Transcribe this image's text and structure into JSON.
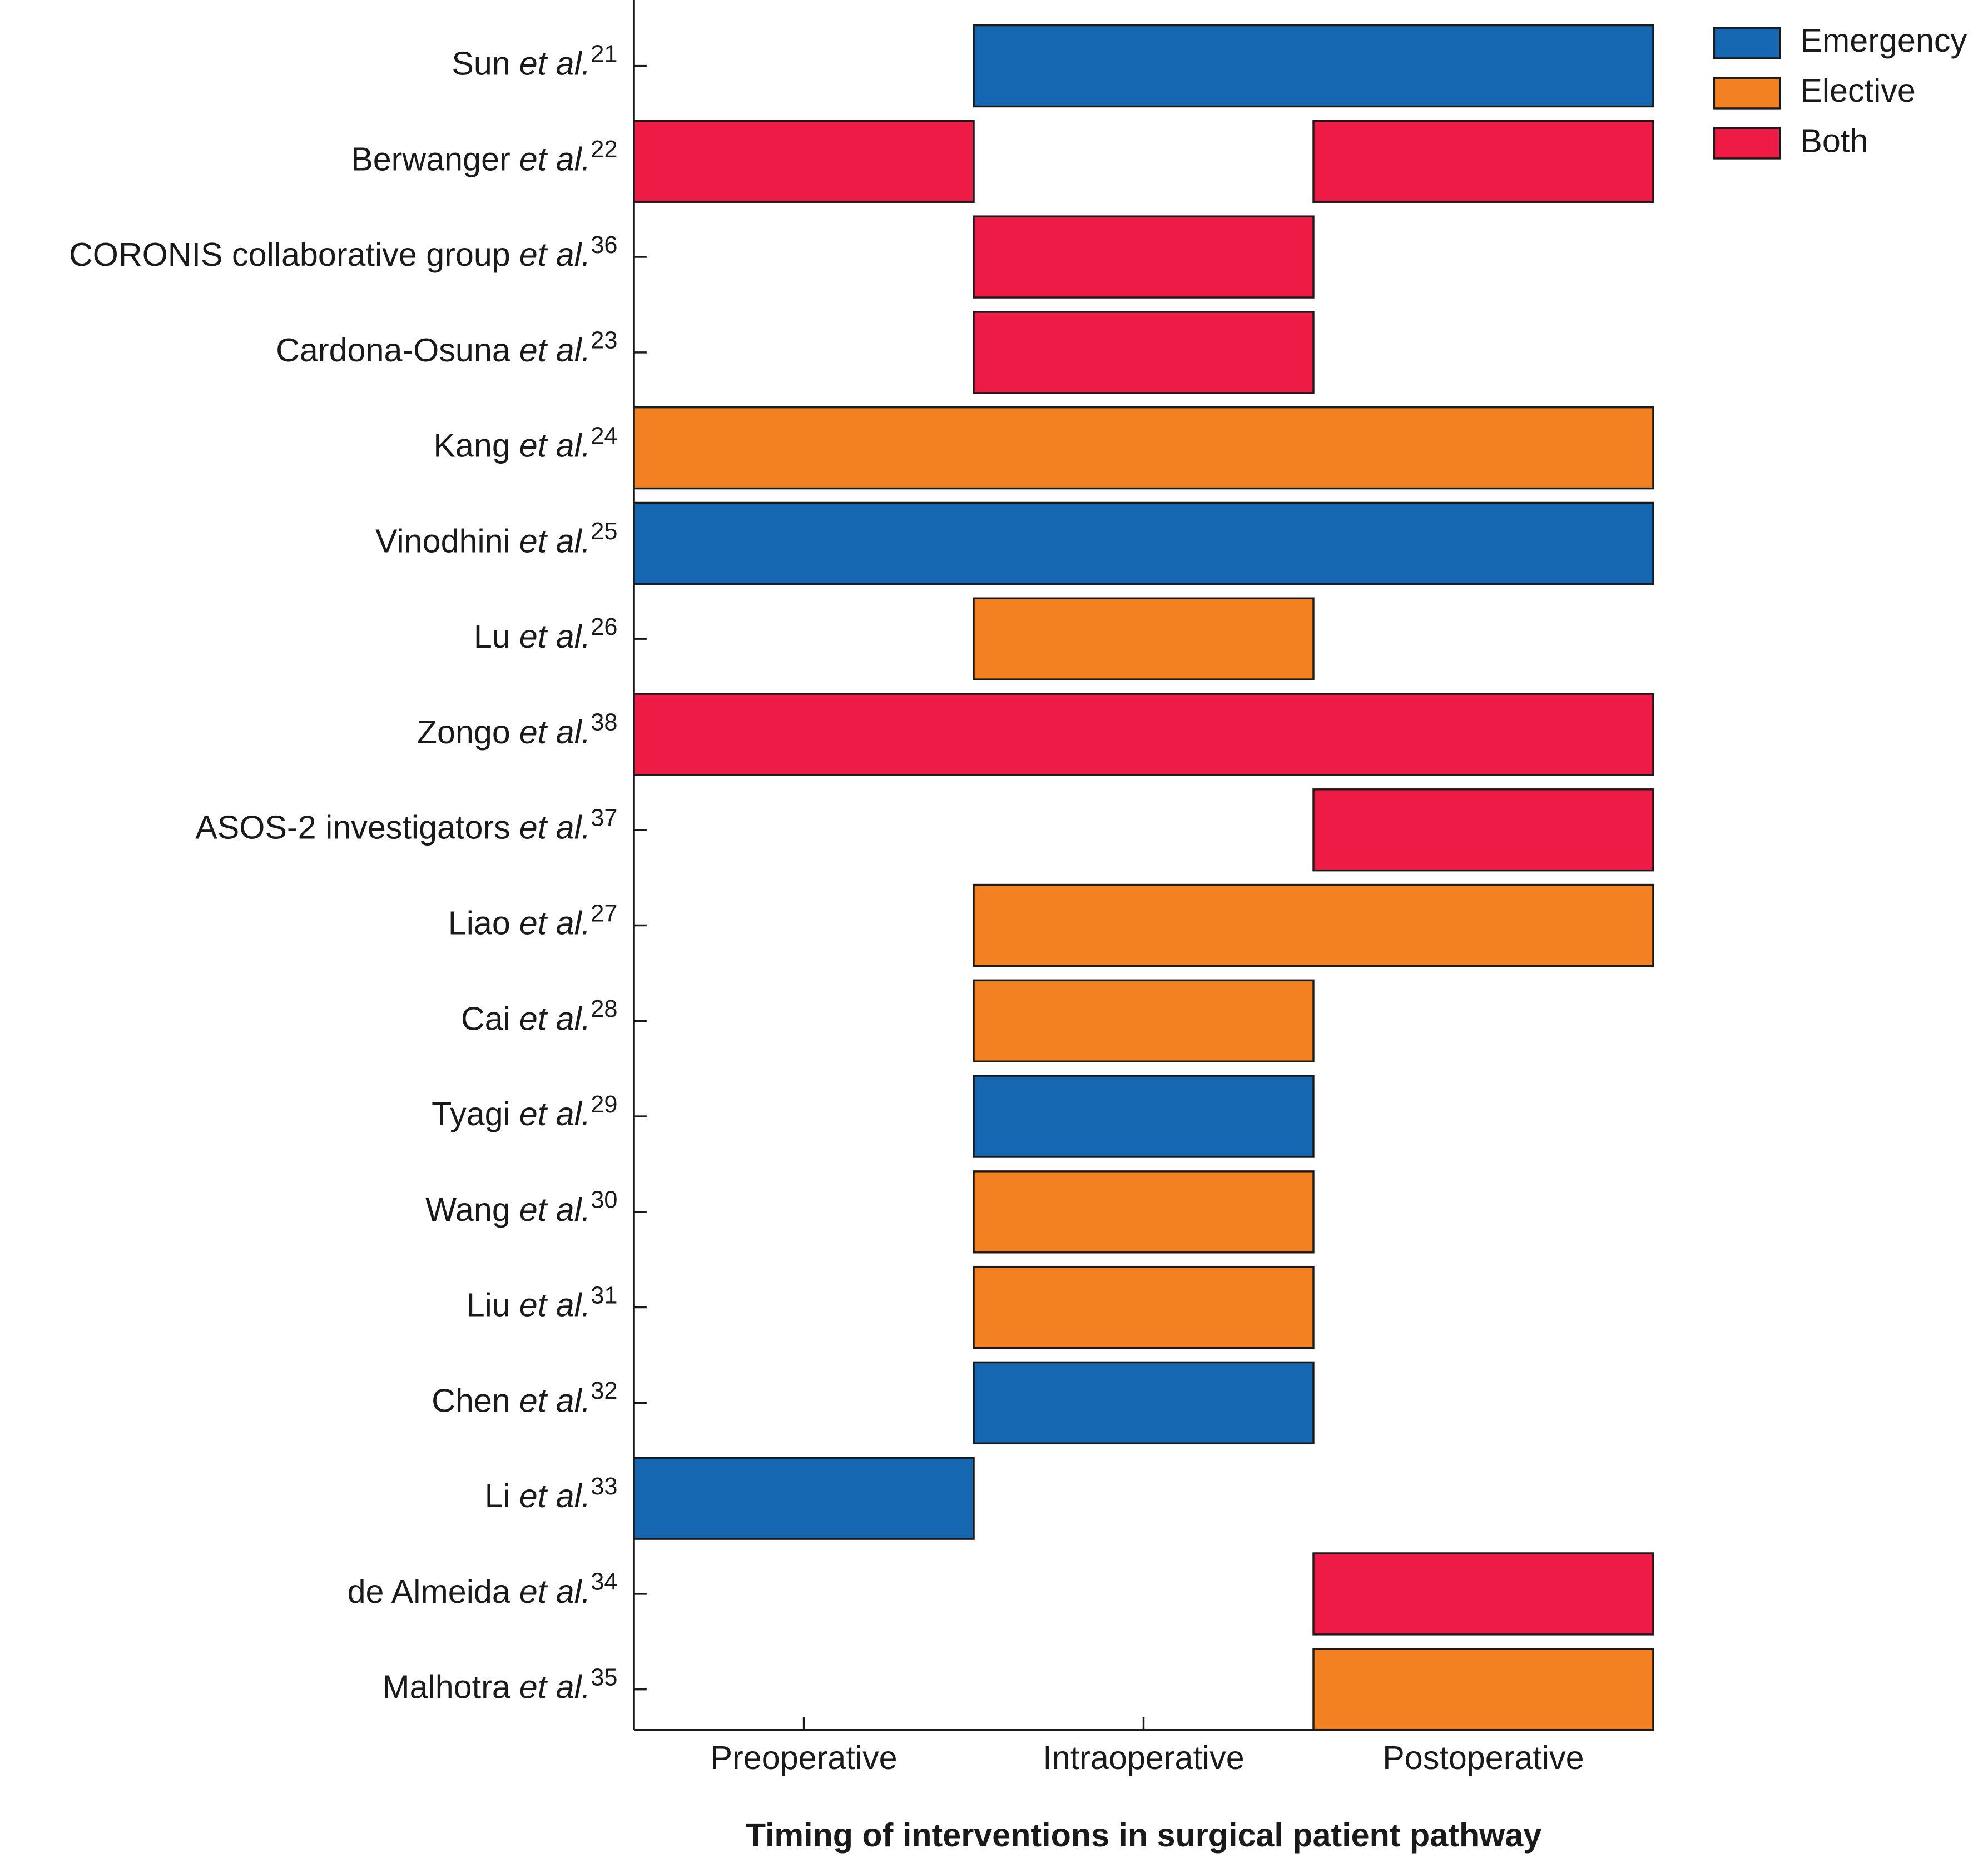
{
  "chart_data": {
    "type": "gantt",
    "x_label": "Timing of interventions in surgical patient pathway",
    "xlim": [
      0,
      3
    ],
    "xticks": [
      {
        "value": 0.5,
        "label": "Preoperative"
      },
      {
        "value": 1.5,
        "label": "Intraoperative"
      },
      {
        "value": 2.5,
        "label": "Postoperative"
      }
    ],
    "series": [
      {
        "name": "Emergency",
        "color": "#1667b1"
      },
      {
        "name": "Elective",
        "color": "#f38122"
      },
      {
        "name": "Both",
        "color": "#ee1b46"
      }
    ],
    "legend": "upper right",
    "rows": [
      {
        "name": "Sun",
        "suffix": "et al.",
        "ref": "21",
        "series": 0,
        "spans": [
          [
            1,
            3
          ]
        ]
      },
      {
        "name": "Berwanger",
        "suffix": "et al.",
        "ref": "22",
        "series": 2,
        "spans": [
          [
            0,
            1
          ],
          [
            2,
            3
          ]
        ]
      },
      {
        "name": "CORONIS collaborative group",
        "suffix": "et al.",
        "ref": "36",
        "series": 2,
        "spans": [
          [
            1,
            2
          ]
        ]
      },
      {
        "name": "Cardona-Osuna",
        "suffix": "et al.",
        "ref": "23",
        "series": 2,
        "spans": [
          [
            1,
            2
          ]
        ]
      },
      {
        "name": "Kang",
        "suffix": "et al.",
        "ref": "24",
        "series": 1,
        "spans": [
          [
            0,
            3
          ]
        ]
      },
      {
        "name": "Vinodhini",
        "suffix": "et al.",
        "ref": "25",
        "series": 0,
        "spans": [
          [
            0,
            3
          ]
        ]
      },
      {
        "name": "Lu",
        "suffix": "et al.",
        "ref": "26",
        "series": 1,
        "spans": [
          [
            1,
            2
          ]
        ]
      },
      {
        "name": "Zongo",
        "suffix": "et al.",
        "ref": "38",
        "series": 2,
        "spans": [
          [
            0,
            3
          ]
        ]
      },
      {
        "name": "ASOS-2 investigators",
        "suffix": "et al.",
        "ref": "37",
        "series": 2,
        "spans": [
          [
            2,
            3
          ]
        ]
      },
      {
        "name": "Liao",
        "suffix": "et al.",
        "ref": "27",
        "series": 1,
        "spans": [
          [
            1,
            3
          ]
        ]
      },
      {
        "name": "Cai",
        "suffix": "et al.",
        "ref": "28",
        "series": 1,
        "spans": [
          [
            1,
            2
          ]
        ]
      },
      {
        "name": "Tyagi",
        "suffix": "et al.",
        "ref": "29",
        "series": 0,
        "spans": [
          [
            1,
            2
          ]
        ]
      },
      {
        "name": "Wang",
        "suffix": "et al.",
        "ref": "30",
        "series": 1,
        "spans": [
          [
            1,
            2
          ]
        ]
      },
      {
        "name": "Liu",
        "suffix": "et al.",
        "ref": "31",
        "series": 1,
        "spans": [
          [
            1,
            2
          ]
        ]
      },
      {
        "name": "Chen",
        "suffix": "et al.",
        "ref": "32",
        "series": 0,
        "spans": [
          [
            1,
            2
          ]
        ]
      },
      {
        "name": "Li",
        "suffix": "et al.",
        "ref": "33",
        "series": 0,
        "spans": [
          [
            0,
            1
          ]
        ]
      },
      {
        "name": "de Almeida",
        "suffix": "et al.",
        "ref": "34",
        "series": 2,
        "spans": [
          [
            2,
            3
          ]
        ]
      },
      {
        "name": "Malhotra",
        "suffix": "et al.",
        "ref": "35",
        "series": 1,
        "spans": [
          [
            2,
            3
          ]
        ]
      }
    ]
  }
}
